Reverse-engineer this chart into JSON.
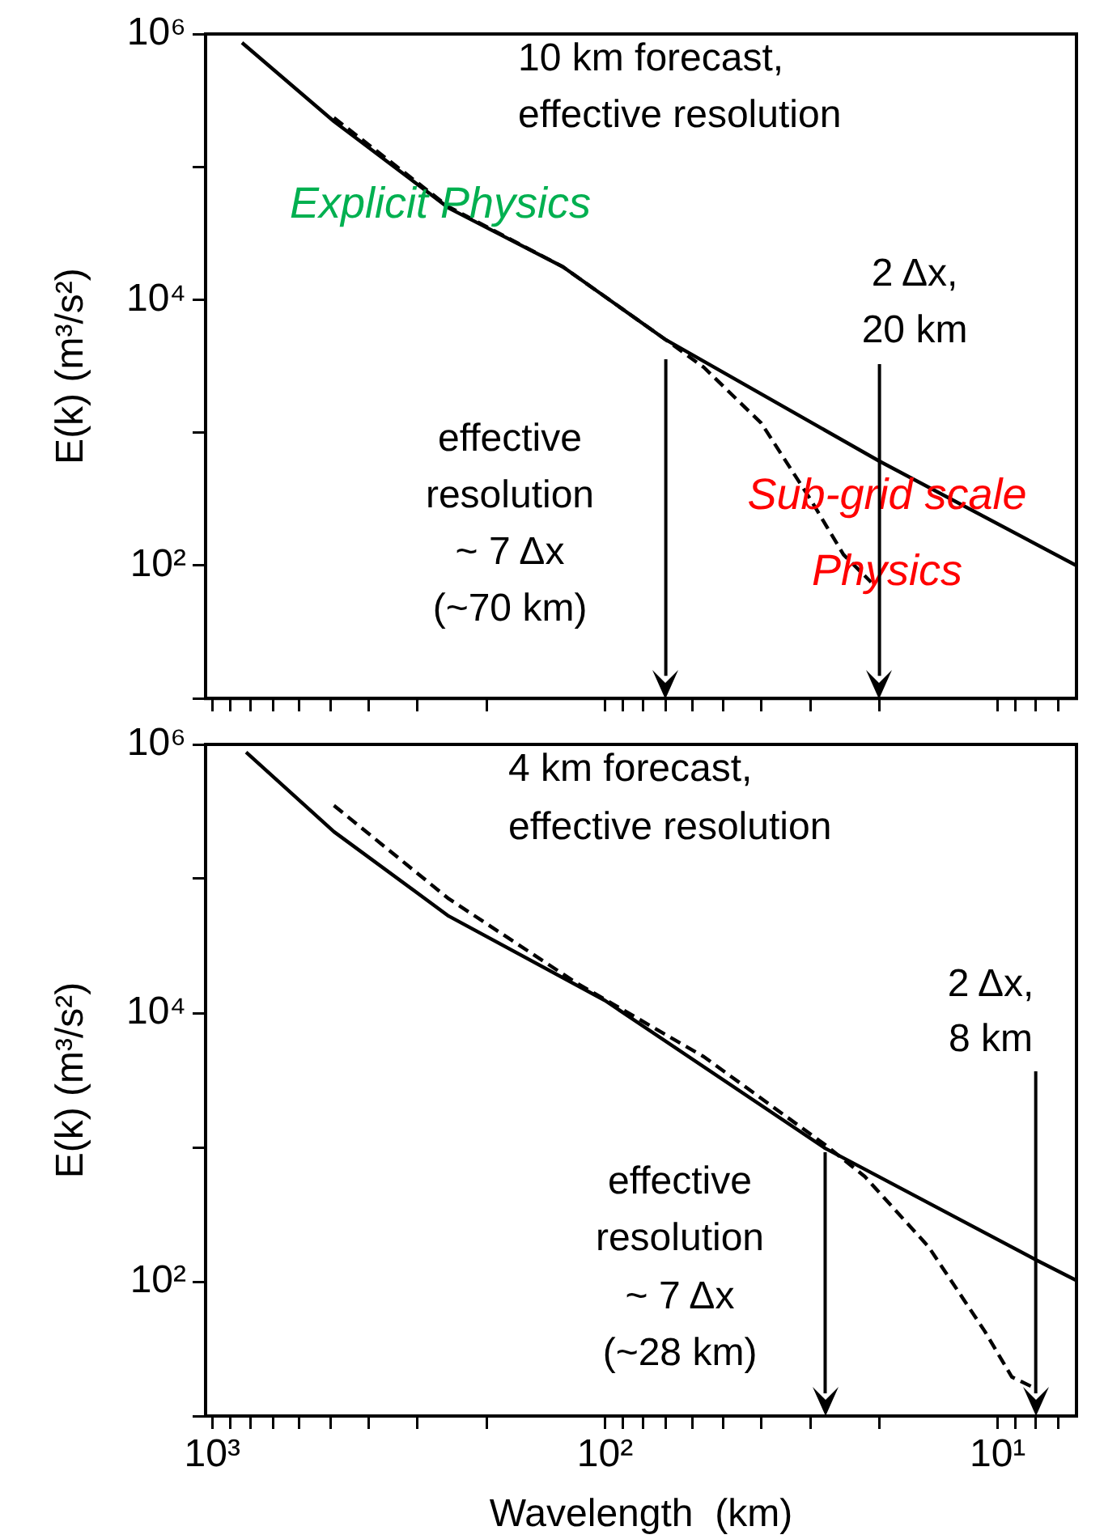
{
  "chart_data": [
    {
      "type": "line",
      "title": "10 km forecast,\neffective resolution",
      "ylabel": "E(k) (m³/s²)",
      "log": "xy",
      "xlim": [
        1040,
        6.3
      ],
      "ylim": [
        10,
        1000000
      ],
      "xticks": [
        {
          "value": 1000,
          "label": null
        },
        {
          "value": 900,
          "label": null
        },
        {
          "value": 800,
          "label": null
        },
        {
          "value": 700,
          "label": null
        },
        {
          "value": 600,
          "label": null
        },
        {
          "value": 500,
          "label": null
        },
        {
          "value": 400,
          "label": null
        },
        {
          "value": 300,
          "label": null
        },
        {
          "value": 200,
          "label": null
        },
        {
          "value": 100,
          "label": null
        },
        {
          "value": 90,
          "label": null
        },
        {
          "value": 80,
          "label": null
        },
        {
          "value": 70,
          "label": null
        },
        {
          "value": 60,
          "label": null
        },
        {
          "value": 50,
          "label": null
        },
        {
          "value": 40,
          "label": null
        },
        {
          "value": 30,
          "label": null
        },
        {
          "value": 20,
          "label": null
        },
        {
          "value": 10,
          "label": null
        },
        {
          "value": 9,
          "label": null
        },
        {
          "value": 8,
          "label": null
        },
        {
          "value": 7,
          "label": null
        }
      ],
      "yticks": [
        {
          "value": 1000000,
          "label": "10⁶"
        },
        {
          "value": 100000,
          "label": null
        },
        {
          "value": 10000,
          "label": "10⁴"
        },
        {
          "value": 1000,
          "label": null
        },
        {
          "value": 100,
          "label": "10²"
        },
        {
          "value": 10,
          "label": null
        }
      ],
      "tick_labels": "y",
      "grid": false,
      "legend": false,
      "marker": "none",
      "series": [
        {
          "type": "line",
          "color": "#000000",
          "line_style": "solid",
          "x": [
            840,
            490,
            250,
            128,
            70,
            20,
            6.3
          ],
          "values": [
            860000,
            220000,
            49000,
            17700,
            5000,
            610,
            100
          ]
        },
        {
          "type": "line",
          "color": "#000000",
          "line_style": "dashed",
          "x": [
            490,
            250,
            128,
            70,
            56,
            40,
            30,
            24.7,
            21
          ],
          "values": [
            234000,
            50000,
            17700,
            5000,
            3100,
            1180,
            316,
            121,
            75
          ]
        }
      ],
      "ref_lines": [
        {
          "axis": "x",
          "value": 70,
          "label": "effective\nresolution\n~ 7 Δx\n(~70 km)"
        },
        {
          "axis": "x",
          "value": 20,
          "label": "2 Δx,\n20 km"
        }
      ],
      "annotations": [
        "Explicit Physics",
        "Sub-grid scale\nPhysics"
      ]
    },
    {
      "type": "line",
      "title": "4 km forecast,\neffective resolution",
      "xlabel": "Wavelength  (km)",
      "ylabel": "E(k) (m³/s²)",
      "log": "xy",
      "xlim": [
        1040,
        6.3
      ],
      "ylim": [
        10,
        1000000
      ],
      "xticks": [
        {
          "value": 1000,
          "label": "10³"
        },
        {
          "value": 900,
          "label": null
        },
        {
          "value": 800,
          "label": null
        },
        {
          "value": 700,
          "label": null
        },
        {
          "value": 600,
          "label": null
        },
        {
          "value": 500,
          "label": null
        },
        {
          "value": 400,
          "label": null
        },
        {
          "value": 300,
          "label": null
        },
        {
          "value": 200,
          "label": null
        },
        {
          "value": 100,
          "label": "10²"
        },
        {
          "value": 90,
          "label": null
        },
        {
          "value": 80,
          "label": null
        },
        {
          "value": 70,
          "label": null
        },
        {
          "value": 60,
          "label": null
        },
        {
          "value": 50,
          "label": null
        },
        {
          "value": 40,
          "label": null
        },
        {
          "value": 30,
          "label": null
        },
        {
          "value": 20,
          "label": null
        },
        {
          "value": 10,
          "label": "10¹"
        },
        {
          "value": 9,
          "label": null
        },
        {
          "value": 8,
          "label": null
        },
        {
          "value": 7,
          "label": null
        }
      ],
      "yticks": [
        {
          "value": 1000000,
          "label": "10⁶"
        },
        {
          "value": 100000,
          "label": null
        },
        {
          "value": 10000,
          "label": "10⁴"
        },
        {
          "value": 1000,
          "label": null
        },
        {
          "value": 100,
          "label": "10²"
        },
        {
          "value": 10,
          "label": null
        }
      ],
      "grid": false,
      "legend": false,
      "marker": "none",
      "series": [
        {
          "type": "line",
          "color": "#000000",
          "line_style": "solid",
          "x": [
            820,
            490,
            250,
            100,
            27.5,
            7.9,
            6.3
          ],
          "values": [
            875000,
            224000,
            52700,
            12400,
            984,
            143,
            102
          ]
        },
        {
          "type": "line",
          "color": "#000000",
          "line_style": "dashed",
          "x": [
            490,
            250,
            118,
            56,
            27.5,
            21.8,
            15,
            10.8,
            9.2,
            8.1
          ],
          "values": [
            351000,
            71000,
            16700,
            4730,
            1045,
            607,
            182,
            43,
            19.5,
            16.3
          ]
        }
      ],
      "ref_lines": [
        {
          "axis": "x",
          "value": 27.5,
          "label": "effective\nresolution\n~ 7 Δx\n(~28 km)"
        },
        {
          "axis": "x",
          "value": 8,
          "label": "2 Δx,\n8 km"
        }
      ]
    }
  ]
}
